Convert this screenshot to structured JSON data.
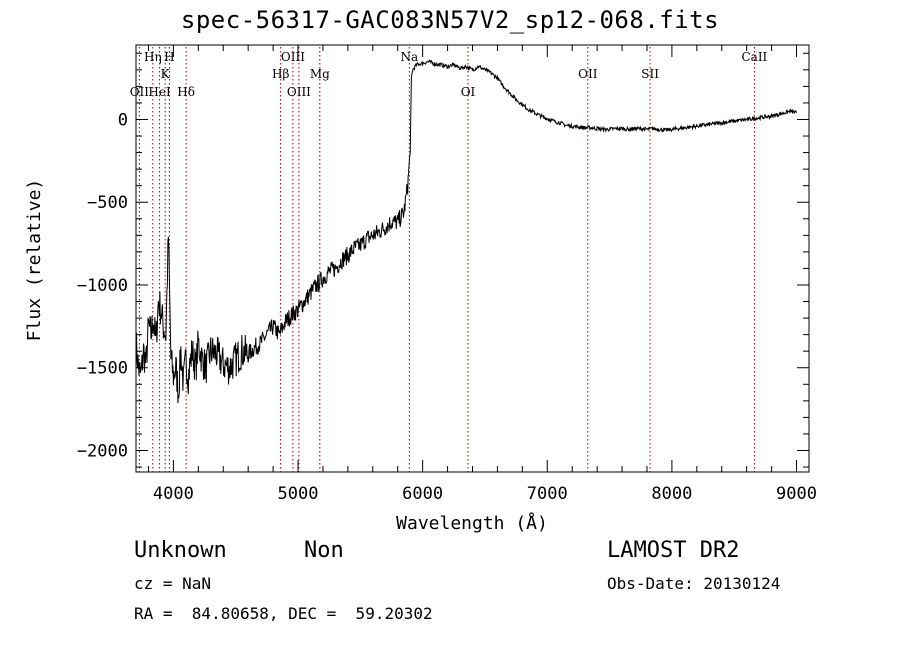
{
  "chart_data": {
    "type": "line",
    "title": "spec-56317-GAC083N57V2_sp12-068.fits",
    "xlabel": "Wavelength (Å)",
    "ylabel": "Flux (relative)",
    "xlim": [
      3700,
      9100
    ],
    "ylim": [
      -2130,
      450
    ],
    "xticks": [
      4000,
      5000,
      6000,
      7000,
      8000,
      9000
    ],
    "yticks": [
      -2000,
      -1500,
      -1000,
      -500,
      0
    ],
    "grid": false,
    "line_color": "#000000",
    "marker_color": "#8b0000",
    "series": [
      {
        "x": [
          3700,
          3720,
          3740,
          3760,
          3780,
          3800,
          3820,
          3840,
          3860,
          3880,
          3900,
          3920,
          3940,
          3960,
          3980,
          4000,
          4020,
          4040,
          4060,
          4080,
          4100,
          4120,
          4150,
          4180,
          4200,
          4230,
          4260,
          4300,
          4350,
          4400,
          4450,
          4500,
          4550,
          4600,
          4650,
          4700,
          4750,
          4800,
          4850,
          4900,
          4950,
          5000,
          5050,
          5100,
          5150,
          5200,
          5250,
          5300,
          5350,
          5400,
          5450,
          5500,
          5550,
          5600,
          5650,
          5700,
          5750,
          5800,
          5850,
          5880,
          5890,
          5900,
          5910,
          5920,
          5950,
          6000,
          6050,
          6100,
          6150,
          6200,
          6250,
          6300,
          6350,
          6400,
          6450,
          6500,
          6550,
          6600,
          6650,
          6700,
          6750,
          6800,
          6850,
          6900,
          6950,
          7000,
          7050,
          7100,
          7150,
          7200,
          7250,
          7300,
          7350,
          7400,
          7450,
          7500,
          7550,
          7600,
          7650,
          7700,
          7750,
          7800,
          7850,
          7900,
          7950,
          8000,
          8050,
          8100,
          8150,
          8200,
          8250,
          8300,
          8350,
          8400,
          8450,
          8500,
          8550,
          8600,
          8650,
          8700,
          8750,
          8800,
          8850,
          8900,
          8950,
          9000
        ],
        "y": [
          -1350,
          -1500,
          -1550,
          -1400,
          -1480,
          -1250,
          -1300,
          -1200,
          -1350,
          -1100,
          -1150,
          -1250,
          -1300,
          -700,
          -1450,
          -1550,
          -1500,
          -1650,
          -1400,
          -1600,
          -1450,
          -1550,
          -1400,
          -1500,
          -1350,
          -1450,
          -1500,
          -1400,
          -1420,
          -1480,
          -1500,
          -1450,
          -1400,
          -1420,
          -1380,
          -1350,
          -1300,
          -1250,
          -1300,
          -1220,
          -1180,
          -1150,
          -1100,
          -1050,
          -1000,
          -960,
          -920,
          -900,
          -850,
          -820,
          -780,
          -760,
          -720,
          -700,
          -680,
          -650,
          -620,
          -620,
          -560,
          -400,
          -300,
          -200,
          250,
          300,
          330,
          340,
          350,
          335,
          330,
          320,
          330,
          310,
          320,
          300,
          320,
          300,
          280,
          250,
          200,
          160,
          120,
          90,
          60,
          40,
          20,
          5,
          -10,
          -20,
          -35,
          -40,
          -45,
          -50,
          -50,
          -55,
          -60,
          -60,
          -55,
          -55,
          -60,
          -55,
          -55,
          -60,
          -55,
          -60,
          -65,
          -60,
          -55,
          -50,
          -45,
          -40,
          -35,
          -30,
          -25,
          -20,
          -15,
          -10,
          -5,
          0,
          5,
          10,
          15,
          20,
          30,
          40,
          50,
          40
        ]
      }
    ],
    "line_markers": [
      {
        "label": "OII",
        "x": 3727,
        "row": 3
      },
      {
        "label": "Hη",
        "x": 3835,
        "row": 1
      },
      {
        "label": "HeI",
        "x": 3889,
        "row": 3
      },
      {
        "label": "K",
        "x": 3934,
        "row": 2
      },
      {
        "label": "H",
        "x": 3968,
        "row": 1
      },
      {
        "label": "Hδ",
        "x": 4102,
        "row": 3
      },
      {
        "label": "Hβ",
        "x": 4861,
        "row": 2
      },
      {
        "label": "OIII",
        "x": 4959,
        "row": 1
      },
      {
        "label": "OIII",
        "x": 5007,
        "row": 3
      },
      {
        "label": "Mg",
        "x": 5175,
        "row": 2
      },
      {
        "label": "Na",
        "x": 5893,
        "row": 1
      },
      {
        "label": "OI",
        "x": 6364,
        "row": 3
      },
      {
        "label": "OII",
        "x": 7325,
        "row": 2
      },
      {
        "label": "SII",
        "x": 7825,
        "row": 2
      },
      {
        "label": "CaII",
        "x": 8662,
        "row": 1
      }
    ]
  },
  "footer": {
    "object_class": "Unknown",
    "object_subclass": "Non",
    "cz": "cz = NaN",
    "radec": "RA =  84.80658, DEC =  59.20302",
    "survey": "LAMOST DR2",
    "obs_date": "Obs-Date: 20130124"
  }
}
